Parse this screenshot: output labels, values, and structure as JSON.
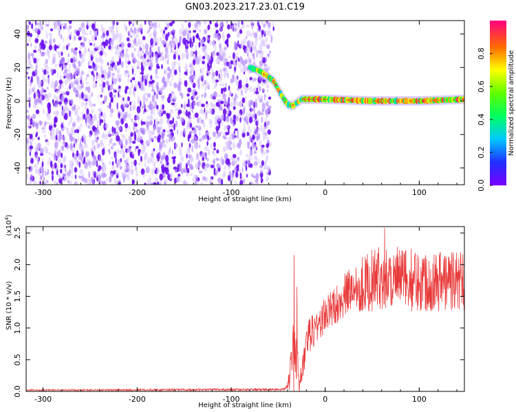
{
  "figure": {
    "title": "GN03.2023.217.23.01.C19",
    "colorbar_label": "Normalized spectral amplitude"
  },
  "chart_data": [
    {
      "type": "heatmap",
      "title": "GN03.2023.217.23.01.C19",
      "xlabel": "Height of straight line (km)",
      "ylabel": "Frequency (Hz)",
      "xlim": [
        -318,
        148
      ],
      "ylim": [
        -50,
        48
      ],
      "xticks": [
        -300,
        -200,
        -100,
        0,
        100
      ],
      "yticks": [
        -40,
        -20,
        0,
        20,
        40
      ],
      "colorbar": {
        "label": "Normalized spectral amplitude",
        "range": [
          0.0,
          1.0
        ],
        "ticks": [
          0.0,
          0.2,
          0.4,
          0.6,
          0.8
        ]
      },
      "noise_region_x": [
        -318,
        -58
      ],
      "ridge": {
        "x": [
          -80,
          -70,
          -62,
          -55,
          -50,
          -45,
          -40,
          -35,
          -30,
          -25,
          -20,
          0,
          50,
          100,
          148
        ],
        "y": [
          20,
          18,
          15,
          12,
          7,
          2,
          -2,
          -3,
          -1,
          1,
          1,
          1,
          0,
          0,
          1
        ]
      }
    },
    {
      "type": "line",
      "xlabel": "Height of straight line (km)",
      "ylabel": "SNR (10 * v/v)",
      "y_multiplier": "(x10",
      "y_multiplier_exp": "4",
      "y_multiplier_close": ")",
      "xlim": [
        -318,
        148
      ],
      "ylim": [
        0,
        2.6
      ],
      "xticks": [
        -300,
        -200,
        -100,
        0,
        100
      ],
      "yticks": [
        0.0,
        0.5,
        1.0,
        1.5,
        2.0,
        2.5
      ],
      "series": [
        {
          "color": "#e83a3a",
          "envelope": {
            "x": [
              -318,
              -45,
              -40,
              -37,
              -35,
              -33,
              -30,
              -28,
              -25,
              -20,
              -15,
              -10,
              0,
              10,
              20,
              30,
              40,
              50,
              60,
              80,
              100,
              120,
              148
            ],
            "y_base": [
              0.02,
              0.03,
              0.1,
              0.4,
              0.3,
              0.9,
              0.3,
              0.1,
              0.3,
              0.7,
              0.95,
              1.0,
              1.2,
              1.35,
              1.5,
              1.65,
              1.7,
              1.75,
              1.8,
              1.78,
              1.75,
              1.75,
              1.75
            ],
            "y_spread": [
              0.01,
              0.02,
              0.05,
              0.4,
              0.2,
              1.2,
              0.6,
              0.2,
              0.2,
              0.3,
              0.3,
              0.3,
              0.3,
              0.3,
              0.35,
              0.4,
              0.45,
              0.5,
              0.5,
              0.5,
              0.5,
              0.5,
              0.5
            ]
          },
          "peaks": [
            {
              "x": -33,
              "y": 2.15
            },
            {
              "x": -30,
              "y": 1.65
            },
            {
              "x": 63,
              "y": 2.58
            }
          ]
        }
      ]
    }
  ]
}
